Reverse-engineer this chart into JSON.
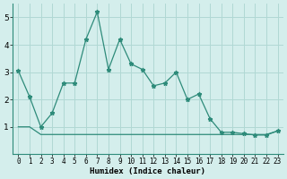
{
  "x": [
    0,
    1,
    2,
    3,
    4,
    5,
    6,
    7,
    8,
    9,
    10,
    11,
    12,
    13,
    14,
    15,
    16,
    17,
    18,
    19,
    20,
    21,
    22,
    23
  ],
  "y_main": [
    3.05,
    2.1,
    1.0,
    1.5,
    2.6,
    2.6,
    4.2,
    5.2,
    3.1,
    4.2,
    3.3,
    3.1,
    2.5,
    2.6,
    3.0,
    2.0,
    2.2,
    1.3,
    0.8,
    0.8,
    0.75,
    0.7,
    0.7,
    0.85
  ],
  "y_flat": [
    1.0,
    1.0,
    0.72,
    0.72,
    0.72,
    0.72,
    0.72,
    0.72,
    0.72,
    0.72,
    0.72,
    0.72,
    0.72,
    0.72,
    0.72,
    0.72,
    0.72,
    0.72,
    0.72,
    0.72,
    0.72,
    0.72,
    0.72,
    0.85
  ],
  "line_color": "#2e8b7a",
  "bg_color": "#d4eeec",
  "grid_color": "#b0d8d4",
  "xlabel": "Humidex (Indice chaleur)",
  "ylim": [
    0,
    5.5
  ],
  "xlim": [
    -0.5,
    23.5
  ],
  "yticks": [
    1,
    2,
    3,
    4,
    5
  ],
  "xticks": [
    0,
    1,
    2,
    3,
    4,
    5,
    6,
    7,
    8,
    9,
    10,
    11,
    12,
    13,
    14,
    15,
    16,
    17,
    18,
    19,
    20,
    21,
    22,
    23
  ],
  "xlabel_fontsize": 6.5,
  "tick_fontsize": 5.5,
  "ytick_fontsize": 6.5
}
